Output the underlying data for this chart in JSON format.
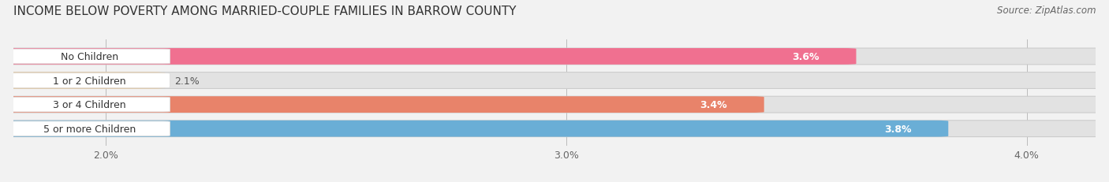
{
  "title": "INCOME BELOW POVERTY AMONG MARRIED-COUPLE FAMILIES IN BARROW COUNTY",
  "source": "Source: ZipAtlas.com",
  "categories": [
    "No Children",
    "1 or 2 Children",
    "3 or 4 Children",
    "5 or more Children"
  ],
  "values": [
    3.6,
    2.1,
    3.4,
    3.8
  ],
  "bar_colors": [
    "#f07090",
    "#f5c98a",
    "#e8836a",
    "#6aaed6"
  ],
  "value_label_colors": [
    "white",
    "#555555",
    "white",
    "white"
  ],
  "xlim": [
    1.8,
    4.15
  ],
  "xticks": [
    2.0,
    3.0,
    4.0
  ],
  "xticklabels": [
    "2.0%",
    "3.0%",
    "4.0%"
  ],
  "title_fontsize": 11,
  "source_fontsize": 8.5,
  "label_fontsize": 9,
  "value_fontsize": 9,
  "tick_fontsize": 9,
  "background_color": "#f2f2f2",
  "bar_background_color": "#e2e2e2",
  "bar_height": 0.62
}
